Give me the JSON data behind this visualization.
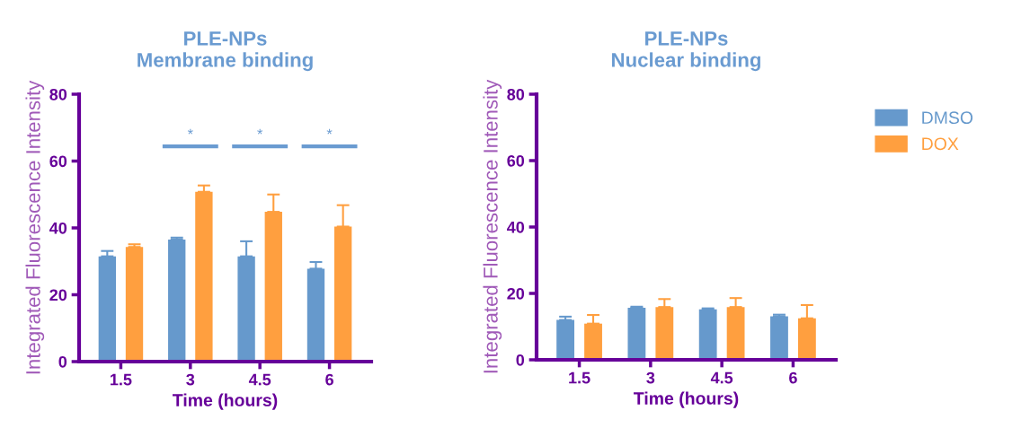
{
  "chart_data": [
    {
      "type": "bar",
      "title": "PLE-NPs\nMembrane binding",
      "xlabel": "Time (hours)",
      "ylabel": "Integrated Fluorescence Intensity",
      "categories": [
        "1.5",
        "3",
        "4.5",
        "6"
      ],
      "series": [
        {
          "name": "DMSO",
          "color": "#6699cc",
          "values": [
            31.5,
            36.5,
            31.5,
            27.8
          ],
          "errors": [
            [
              31.5,
              33.1
            ],
            [
              36.5,
              37.1
            ],
            [
              31.5,
              36
            ],
            [
              27.8,
              29.8
            ]
          ]
        },
        {
          "name": "DOX",
          "color": "#ff9f3f",
          "values": [
            34.3,
            50.8,
            44.8,
            40.4
          ],
          "errors": [
            [
              34.3,
              35.1
            ],
            [
              50.8,
              52.7
            ],
            [
              44.8,
              50
            ],
            [
              40.4,
              46.8
            ]
          ]
        }
      ],
      "ylim": [
        0,
        80
      ],
      "yticks": [
        0,
        20,
        40,
        60,
        80
      ],
      "grid": false,
      "legend": "right",
      "annotations": [
        "*",
        "*",
        "*"
      ]
    },
    {
      "type": "bar",
      "title": "PLE-NPs\nNuclear binding",
      "xlabel": "Time (hours)",
      "ylabel": "Integrated Fluorescence Intensity",
      "categories": [
        "1.5",
        "3",
        "4.5",
        "6"
      ],
      "series": [
        {
          "color": "#6699cc",
          "values": [
            12,
            15.7,
            15.2,
            13.1
          ],
          "errors": [
            [
              12,
              13
            ],
            [
              15.7,
              16
            ],
            [
              15.2,
              15.5
            ],
            [
              13.1,
              13.6
            ]
          ]
        },
        {
          "color": "#ff9f3f",
          "values": [
            10.9,
            15.9,
            15.9,
            12.5
          ],
          "errors": [
            [
              10.9,
              13.5
            ],
            [
              15.9,
              18.3
            ],
            [
              15.9,
              18.6
            ],
            [
              12.5,
              16.5
            ]
          ]
        }
      ],
      "ylim": [
        0,
        80
      ],
      "yticks": [
        0,
        20,
        40,
        60,
        80
      ],
      "grid": false
    }
  ]
}
